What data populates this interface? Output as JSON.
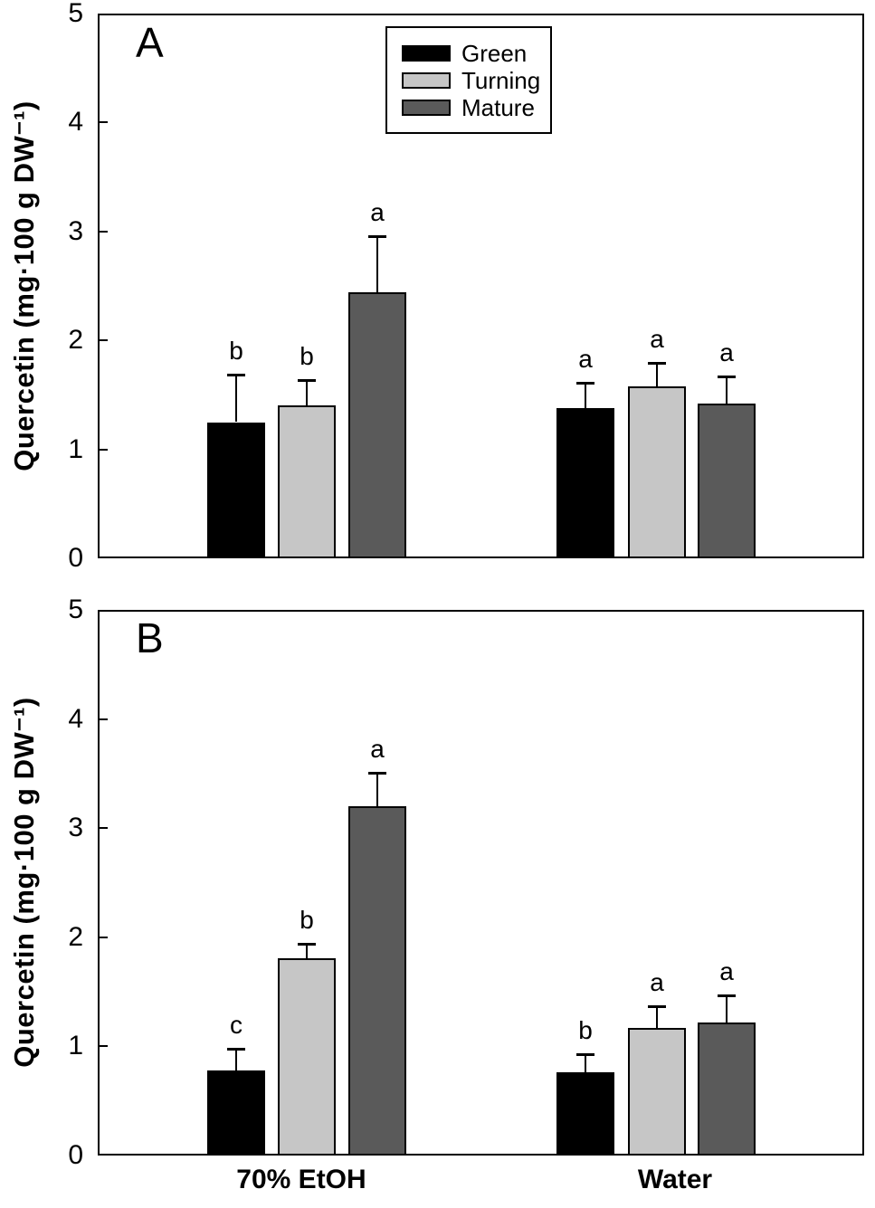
{
  "figure": {
    "background": "#ffffff"
  },
  "legend": {
    "items": [
      {
        "label": "Green",
        "color": "#000000"
      },
      {
        "label": "Turning",
        "color": "#c6c6c6"
      },
      {
        "label": "Mature",
        "color": "#5a5a5a"
      }
    ]
  },
  "chart_data": [
    {
      "panel_label": "A",
      "type": "bar",
      "title": "",
      "xlabel": "",
      "ylabel": "Quercetin (mg·100 g DW⁻¹)",
      "ylim": [
        0,
        5
      ],
      "yticks": [
        0,
        1,
        2,
        3,
        4,
        5
      ],
      "categories": [
        "70% EtOH",
        "Water"
      ],
      "grid": false,
      "legend_position": "upper-left-of-center",
      "error_bars": "upper-only",
      "series": [
        {
          "name": "Green",
          "color": "#000000",
          "values": [
            1.25,
            1.38
          ],
          "errors": [
            0.44,
            0.23
          ],
          "sig_letters": [
            "b",
            "a"
          ]
        },
        {
          "name": "Turning",
          "color": "#c6c6c6",
          "values": [
            1.4,
            1.58
          ],
          "errors": [
            0.24,
            0.21
          ],
          "sig_letters": [
            "b",
            "a"
          ]
        },
        {
          "name": "Mature",
          "color": "#5a5a5a",
          "values": [
            2.44,
            1.42
          ],
          "errors": [
            0.52,
            0.25
          ],
          "sig_letters": [
            "a",
            "a"
          ]
        }
      ]
    },
    {
      "panel_label": "B",
      "type": "bar",
      "title": "",
      "xlabel": "",
      "ylabel": "Quercetin (mg·100 g DW⁻¹)",
      "ylim": [
        0,
        5
      ],
      "yticks": [
        0,
        1,
        2,
        3,
        4,
        5
      ],
      "categories": [
        "70% EtOH",
        "Water"
      ],
      "grid": false,
      "legend_position": "none",
      "error_bars": "upper-only",
      "series": [
        {
          "name": "Green",
          "color": "#000000",
          "values": [
            0.78,
            0.76
          ],
          "errors": [
            0.2,
            0.17
          ],
          "sig_letters": [
            "c",
            "b"
          ]
        },
        {
          "name": "Turning",
          "color": "#c6c6c6",
          "values": [
            1.81,
            1.17
          ],
          "errors": [
            0.13,
            0.2
          ],
          "sig_letters": [
            "b",
            "a"
          ]
        },
        {
          "name": "Mature",
          "color": "#5a5a5a",
          "values": [
            3.2,
            1.22
          ],
          "errors": [
            0.31,
            0.25
          ],
          "sig_letters": [
            "a",
            "a"
          ]
        }
      ]
    }
  ]
}
